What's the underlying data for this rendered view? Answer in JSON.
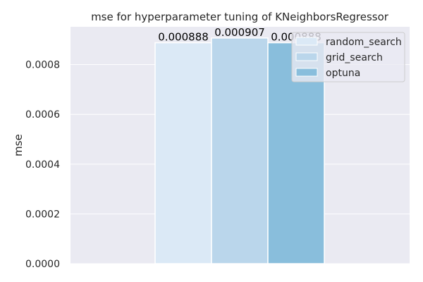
{
  "chart_data": {
    "type": "bar",
    "title": "mse for hyperparameter tuning of KNeighborsRegressor",
    "xlabel": "",
    "ylabel": "mse",
    "ylim": [
      0,
      0.000952
    ],
    "yticks": [
      "0.0000",
      "0.0002",
      "0.0004",
      "0.0006",
      "0.0008"
    ],
    "ytick_values": [
      0,
      0.0002,
      0.0004,
      0.0006,
      0.0008
    ],
    "grid": true,
    "legend_position": "top-right",
    "series": [
      {
        "name": "random_search",
        "values": [
          0.000888
        ],
        "label": "0.000888",
        "color": "#dbe9f6"
      },
      {
        "name": "grid_search",
        "values": [
          0.000907
        ],
        "label": "0.000907",
        "color": "#bad6eb"
      },
      {
        "name": "optuna",
        "values": [
          0.000888
        ],
        "label": "0.000888",
        "color": "#89bedc"
      }
    ]
  },
  "colors": {
    "plot_background": "#eaeaf2",
    "grid": "#ffffff",
    "text": "#262626"
  }
}
